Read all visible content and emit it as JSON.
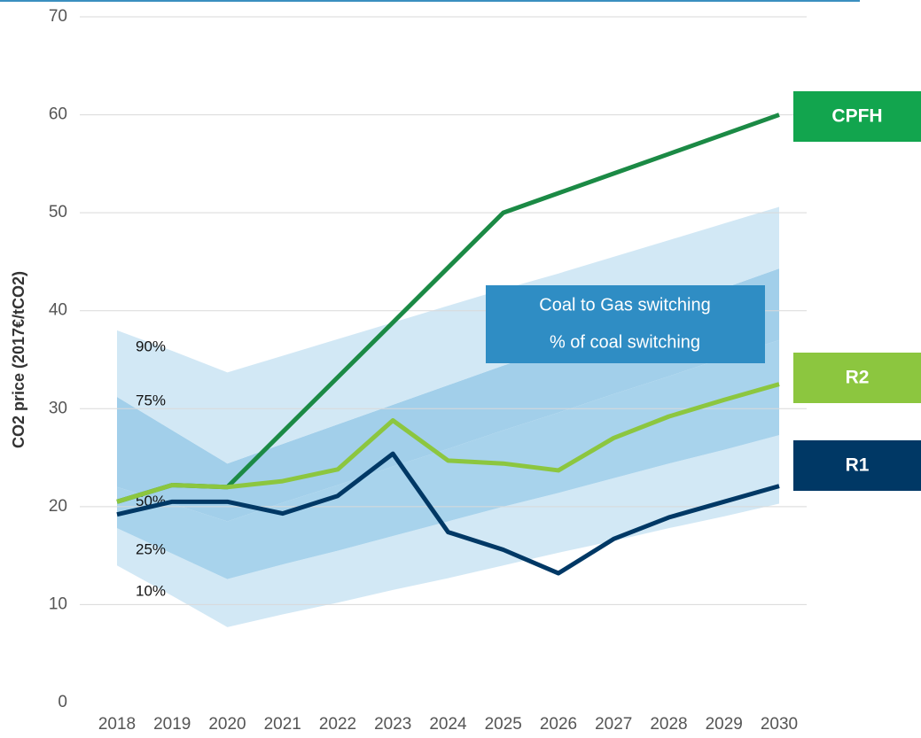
{
  "chart_data": {
    "type": "line",
    "y_label": "CO2 price (2017€/tCO2)",
    "categories": [
      "2018",
      "2019",
      "2020",
      "2021",
      "2022",
      "2023",
      "2024",
      "2025",
      "2026",
      "2027",
      "2028",
      "2029",
      "2030"
    ],
    "ylim": [
      0,
      70
    ],
    "yticks": [
      0,
      10,
      20,
      30,
      40,
      50,
      60,
      70
    ],
    "grid": true,
    "series": [
      {
        "name": "CPFH",
        "color": "#1b8a45",
        "label_color": "#12a54e",
        "values": [
          20.5,
          22.2,
          22.0,
          27.6,
          33.2,
          38.8,
          44.4,
          50,
          52,
          54,
          56,
          58,
          60
        ]
      },
      {
        "name": "R2",
        "color": "#8cc63f",
        "label_color": "#8cc63f",
        "values": [
          20.5,
          22.2,
          22.0,
          22.6,
          23.8,
          28.8,
          24.7,
          24.4,
          23.7,
          27.0,
          29.2,
          30.9,
          32.5
        ]
      },
      {
        "name": "R1",
        "color": "#003865",
        "label_color": "#003865",
        "values": [
          19.2,
          20.5,
          20.5,
          19.3,
          21.1,
          25.4,
          17.4,
          15.6,
          13.2,
          16.7,
          18.9,
          20.5,
          22.1
        ]
      }
    ],
    "bands": [
      {
        "name": "10%",
        "values": [
          14.0,
          10.9,
          7.7,
          9.0,
          10.2,
          11.5,
          12.7,
          14.0,
          15.3,
          16.5,
          17.8,
          19.0,
          20.3
        ]
      },
      {
        "name": "25%",
        "values": [
          17.8,
          15.2,
          12.6,
          14.1,
          15.5,
          17.0,
          18.5,
          20.0,
          21.4,
          22.9,
          24.4,
          25.8,
          27.3
        ]
      },
      {
        "name": "50%",
        "values": [
          22.0,
          20.3,
          18.5,
          20.4,
          22.2,
          24.1,
          25.9,
          27.8,
          29.6,
          31.5,
          33.3,
          35.2,
          37.0
        ]
      },
      {
        "name": "75%",
        "values": [
          31.2,
          27.8,
          24.4,
          26.4,
          28.4,
          30.4,
          32.4,
          34.4,
          36.3,
          38.3,
          40.3,
          42.3,
          44.3
        ]
      },
      {
        "name": "90%",
        "values": [
          38.0,
          35.9,
          33.7,
          35.4,
          37.1,
          38.8,
          40.5,
          42.2,
          43.8,
          45.5,
          47.2,
          48.9,
          50.6
        ]
      }
    ],
    "band_colors": [
      "#d2e8f5",
      "#a8d3ec",
      "#a2cfea",
      "#d2e8f5"
    ],
    "annotation": {
      "lines": [
        "Coal to Gas switching",
        "% of coal switching"
      ],
      "color": "#2f8dc4"
    }
  }
}
